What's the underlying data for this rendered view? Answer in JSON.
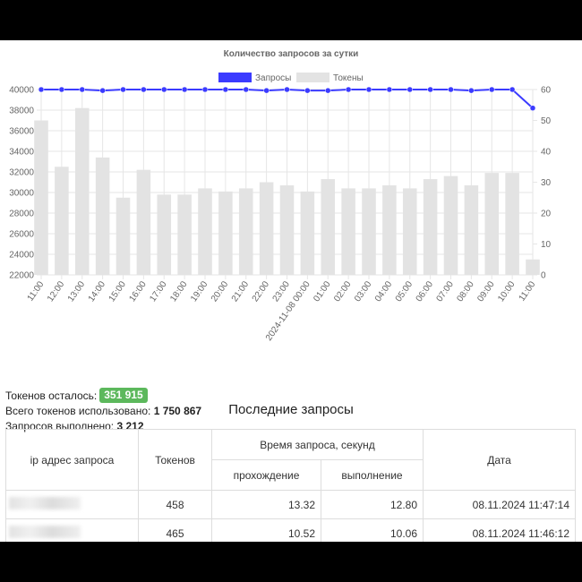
{
  "chart_data": {
    "type": "bar",
    "title": "Количество запросов за сутки",
    "categories": [
      "11:00",
      "12:00",
      "13:00",
      "14:00",
      "15:00",
      "16:00",
      "17:00",
      "18:00",
      "19:00",
      "20:00",
      "21:00",
      "22:00",
      "23:00",
      "2024-11-08 00:00",
      "01:00",
      "02:00",
      "03:00",
      "04:00",
      "05:00",
      "06:00",
      "07:00",
      "08:00",
      "09:00",
      "10:00",
      "11:00"
    ],
    "series": [
      {
        "name": "Запросы",
        "kind": "line",
        "axis": "left",
        "color": "#3b3bff",
        "values": [
          40000,
          40000,
          40000,
          39900,
          40000,
          40000,
          40000,
          40000,
          40000,
          40000,
          40000,
          39900,
          40000,
          39900,
          39900,
          40000,
          40000,
          40000,
          40000,
          40000,
          40000,
          39900,
          40000,
          40000,
          38200
        ]
      },
      {
        "name": "Токены",
        "kind": "bar",
        "axis": "right",
        "color": "#e3e3e3",
        "values": [
          50,
          35,
          54,
          38,
          25,
          34,
          26,
          26,
          28,
          27,
          28,
          30,
          29,
          27,
          31,
          28,
          28,
          29,
          28,
          31,
          32,
          29,
          33,
          33,
          5
        ]
      }
    ],
    "ylim_left": [
      22000,
      40000
    ],
    "yticks_left": [
      22000,
      24000,
      26000,
      28000,
      30000,
      32000,
      34000,
      36000,
      38000,
      40000
    ],
    "ylim_right": [
      0,
      60
    ],
    "yticks_right": [
      0,
      10,
      20,
      30,
      40,
      50,
      60
    ],
    "legend": "top-center",
    "grid": true
  },
  "stats": {
    "tokens_left_label": "Токенов осталось:",
    "tokens_left_value": "351 915",
    "tokens_used_label": "Всего токенов использовано:",
    "tokens_used_value": "1 750 867",
    "requests_done_label": "Запросов выполнено:",
    "requests_done_value": "3 212"
  },
  "recent": {
    "title": "Последние запросы",
    "headers": {
      "ip": "ip адрес запроса",
      "tokens": "Токенов",
      "time_group": "Время запроса, секунд",
      "pass": "прохождение",
      "exec": "выполнение",
      "date": "Дата"
    },
    "rows": [
      {
        "tokens": "458",
        "pass": "13.32",
        "exec": "12.80",
        "date": "08.11.2024 11:47:14"
      },
      {
        "tokens": "465",
        "pass": "10.52",
        "exec": "10.06",
        "date": "08.11.2024 11:46:12"
      }
    ]
  }
}
